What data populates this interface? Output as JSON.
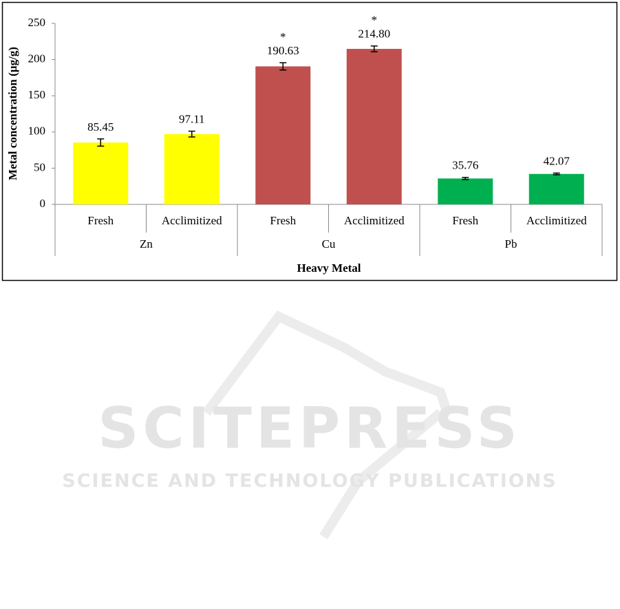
{
  "chart_data": {
    "type": "bar",
    "y_label": "Metal concentration (µg/g)",
    "x_label": "Heavy Metal",
    "groups": [
      "Zn",
      "Cu",
      "Pb"
    ],
    "categories": [
      "Fresh",
      "Acclimitized",
      "Fresh",
      "Acclimitized",
      "Fresh",
      "Acclimitized"
    ],
    "values": [
      85.45,
      97.11,
      190.63,
      214.8,
      35.76,
      42.07
    ],
    "value_labels": [
      "85.45",
      "97.11",
      "190.63",
      "214.80",
      "35.76",
      "42.07"
    ],
    "errors": [
      5,
      4,
      5,
      4,
      1.5,
      1.2
    ],
    "significance": [
      null,
      null,
      "*",
      "*",
      null,
      null
    ],
    "colors": [
      "#ffff00",
      "#ffff00",
      "#c0504d",
      "#c0504d",
      "#00b050",
      "#00b050"
    ],
    "ylim": [
      0,
      250
    ],
    "yticks": [
      0,
      50,
      100,
      150,
      200,
      250
    ],
    "grid": false
  },
  "watermark": {
    "title": "SCITEPRESS",
    "subtitle": "SCIENCE AND TECHNOLOGY PUBLICATIONS"
  }
}
